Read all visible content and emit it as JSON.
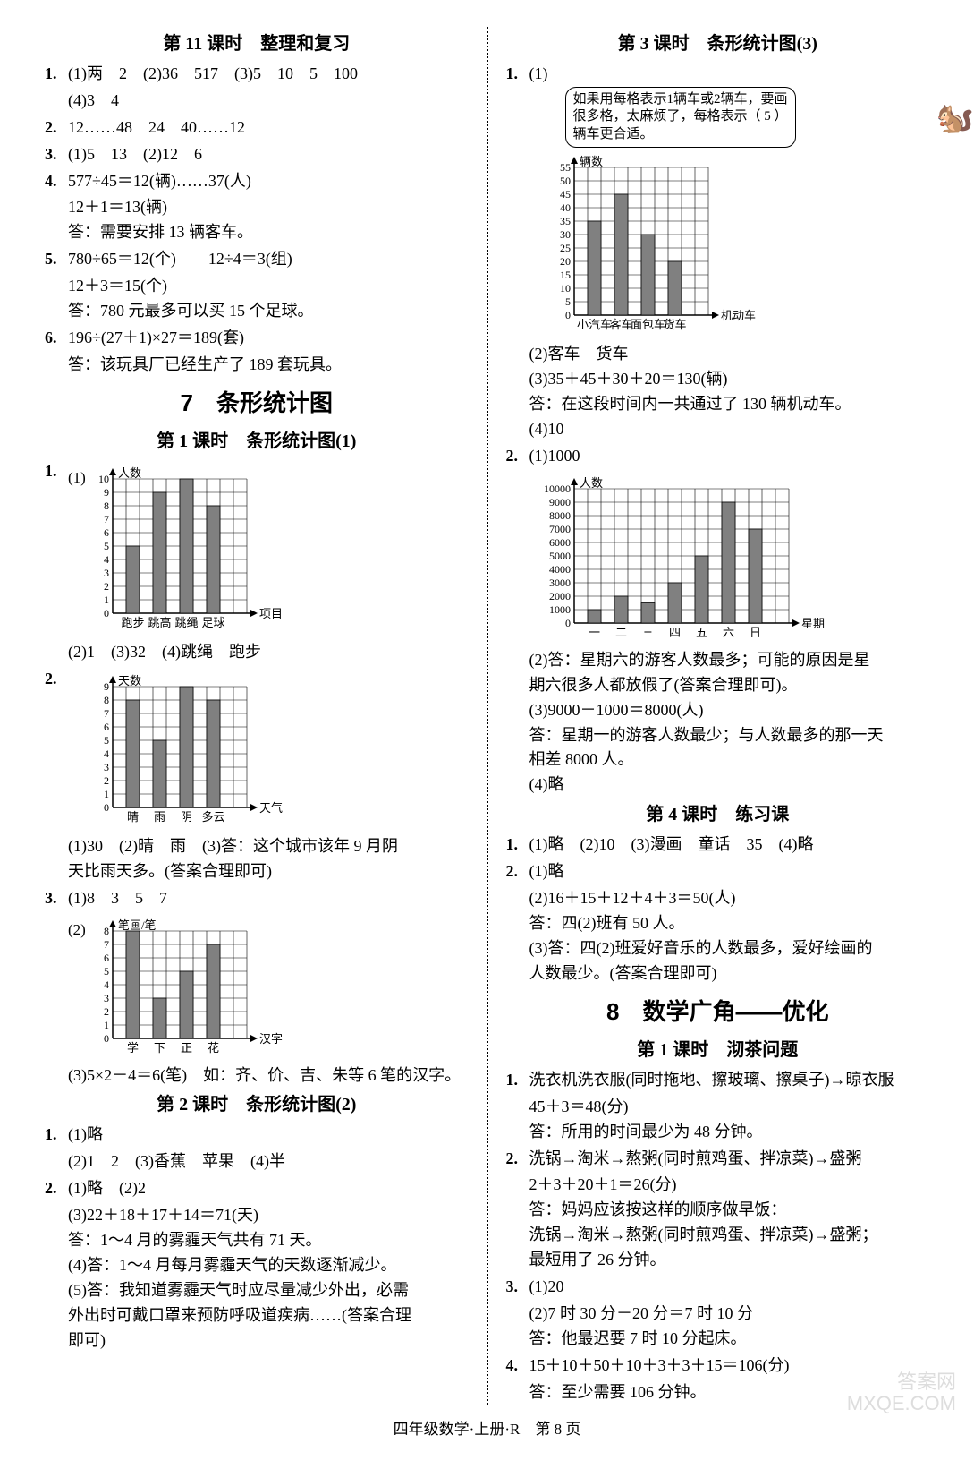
{
  "left": {
    "sec11_title": "第 11 课时　整理和复习",
    "q1_l1": "(1)两　2　(2)36　517　(3)5　10　5　100",
    "q1_l2": "(4)3　4",
    "q2": "12……48　24　40……12",
    "q3": "(1)5　13　(2)12　6",
    "q4_l1": "577÷45＝12(辆)……37(人)",
    "q4_l2": "12＋1＝13(辆)",
    "q4_l3": "答：需要安排 13 辆客车。",
    "q5_l1": "780÷65＝12(个)　　12÷4＝3(组)",
    "q5_l2": "12＋3＝15(个)",
    "q5_l3": "答：780 元最多可以买 15 个足球。",
    "q6_l1": "196÷(27＋1)×27＝189(套)",
    "q6_l2": "答：该玩具厂已经生产了 189 套玩具。",
    "big7": "7　条形统计图",
    "sec7_1": "第 1 课时　条形统计图(1)",
    "c1": {
      "prefix": "(1)",
      "ylabel": "人数",
      "xlabel": "项目",
      "ymax": 10,
      "categories": [
        "跑步",
        "跳高",
        "跳绳",
        "足球"
      ],
      "values": [
        5,
        9,
        10,
        8
      ],
      "bar": "#808080",
      "grid": "#000"
    },
    "c1_after": "(2)1　(3)32　(4)跳绳　跑步",
    "c2": {
      "ylabel": "天数",
      "xlabel": "天气",
      "ymax": 9,
      "categories": [
        "晴",
        "雨",
        "阴",
        "多云"
      ],
      "values": [
        8,
        5,
        9,
        8
      ],
      "bar": "#808080"
    },
    "c2_l1": "(1)30　(2)晴　雨　(3)答：这个城市该年 9 月阴",
    "c2_l2": "天比雨天多。(答案合理即可)",
    "q3b_l1": "(1)8　3　5　7",
    "c3": {
      "prefix": "(2)",
      "ylabel": "笔画/笔",
      "xlabel": "汉字",
      "ymax": 8,
      "categories": [
        "学",
        "下",
        "正",
        "花"
      ],
      "values": [
        8,
        3,
        5,
        7
      ],
      "bar": "#808080"
    },
    "c3_after": "(3)5×2－4＝6(笔)　如：齐、价、吉、朱等 6 笔的汉字。",
    "sec7_2": "第 2 课时　条形统计图(2)",
    "s2_q1_l1": "(1)略",
    "s2_q1_l2": "(2)1　2　(3)香蕉　苹果　(4)半",
    "s2_q2_l1": "(1)略　(2)2",
    "s2_q2_l2": "(3)22＋18＋17＋14＝71(天)",
    "s2_q2_l3": "答：1～4 月的雾霾天气共有 71 天。",
    "s2_q2_l4": "(4)答：1～4 月每月雾霾天气的天数逐渐减少。",
    "s2_q2_l5": "(5)答：我知道雾霾天气时应尽量减少外出，必需",
    "s2_q2_l6": "外出时可戴口罩来预防呼吸道疾病……(答案合理",
    "s2_q2_l7": "即可)"
  },
  "right": {
    "sec7_3": "第 3 课时　条形统计图(3)",
    "bubble": "如果用每格表示1辆车或2辆车，要画很多格，太麻烦了，每格表示（ 5 ）辆车更合适。",
    "c4": {
      "ylabel": "辆数",
      "xlabel": "机动车",
      "ymax": 55,
      "ystep": 5,
      "categories": [
        "小汽车",
        "客车",
        "面包车",
        "货车"
      ],
      "values": [
        35,
        45,
        30,
        20
      ],
      "bar": "#808080"
    },
    "c4_l1": "(2)客车　货车",
    "c4_l2": "(3)35＋45＋30＋20＝130(辆)",
    "c4_l3": "答：在这段时间内一共通过了 130 辆机动车。",
    "c4_l4": "(4)10",
    "q2r_l1": "(1)1000",
    "c5": {
      "ylabel": "人数",
      "xlabel": "星期",
      "ymax": 10000,
      "ystep": 1000,
      "categories": [
        "一",
        "二",
        "三",
        "四",
        "五",
        "六",
        "日"
      ],
      "values": [
        1000,
        2000,
        1500,
        3000,
        5000,
        9000,
        7000
      ],
      "bar": "#808080"
    },
    "c5_l1": "(2)答：星期六的游客人数最多；可能的原因是星",
    "c5_l2": "期六很多人都放假了(答案合理即可)。",
    "c5_l3": "(3)9000－1000＝8000(人)",
    "c5_l4": "答：星期一的游客人数最少；与人数最多的那一天",
    "c5_l5": "相差 8000 人。",
    "c5_l6": "(4)略",
    "sec7_4": "第 4 课时　练习课",
    "s4_q1": "(1)略　(2)10　(3)漫画　童话　35　(4)略",
    "s4_q2_l1": "(1)略",
    "s4_q2_l2": "(2)16＋15＋12＋4＋3＝50(人)",
    "s4_q2_l3": "答：四(2)班有 50 人。",
    "s4_q2_l4": "(3)答：四(2)班爱好音乐的人数最多，爱好绘画的",
    "s4_q2_l5": "人数最少。(答案合理即可)",
    "big8": "8　数学广角——优化",
    "sec8_1": "第 1 课时　沏茶问题",
    "s8_q1_l1": "洗衣机洗衣服(同时拖地、擦玻璃、擦桌子)→晾衣服",
    "s8_q1_l2": "45＋3＝48(分)",
    "s8_q1_l3": "答：所用的时间最少为 48 分钟。",
    "s8_q2_l1": "洗锅→淘米→熬粥(同时煎鸡蛋、拌凉菜)→盛粥",
    "s8_q2_l2": "2＋3＋20＋1＝26(分)",
    "s8_q2_l3": "答：妈妈应该按这样的顺序做早饭：",
    "s8_q2_l4": "洗锅→淘米→熬粥(同时煎鸡蛋、拌凉菜)→盛粥；",
    "s8_q2_l5": "最短用了 26 分钟。",
    "s8_q3_l1": "(1)20",
    "s8_q3_l2": "(2)7 时 30 分－20 分＝7 时 10 分",
    "s8_q3_l3": "答：他最迟要 7 时 10 分起床。",
    "s8_q4_l1": "15＋10＋50＋10＋3＋3＋15＝106(分)",
    "s8_q4_l2": "答：至少需要 106 分钟。"
  },
  "footer": "四年级数学·上册·R　第 8 页",
  "wm1": "答案网",
  "wm2": "MXQE.COM"
}
